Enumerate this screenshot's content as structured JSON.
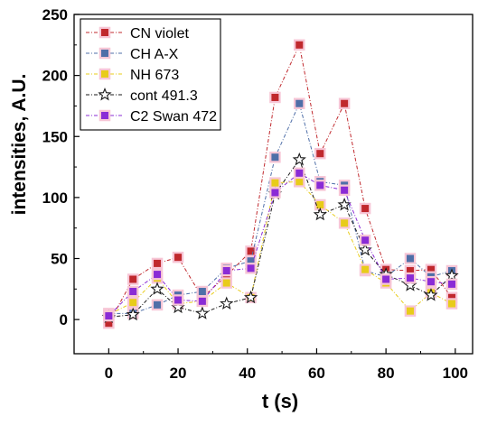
{
  "chart_data": {
    "type": "line",
    "xlabel": "t (s)",
    "ylabel": "intensities, A.U.",
    "xlim": [
      -10,
      105
    ],
    "ylim": [
      -28,
      250
    ],
    "xticks": [
      0,
      20,
      40,
      60,
      80,
      100
    ],
    "yticks": [
      0,
      50,
      100,
      150,
      200,
      250
    ],
    "grid": false,
    "legend_position": "top-left",
    "series": [
      {
        "name": "CN violet",
        "color": "#c0282d",
        "marker": "square",
        "x": [
          0,
          7,
          14,
          20,
          27,
          34,
          41,
          48,
          55,
          61,
          68,
          74,
          80,
          87,
          93,
          99
        ],
        "y": [
          -3,
          33,
          46,
          51,
          18,
          36,
          56,
          182,
          225,
          136,
          177,
          91,
          41,
          40,
          41,
          18
        ]
      },
      {
        "name": "CH A-X",
        "color": "#4f6fa8",
        "marker": "square",
        "x": [
          0,
          7,
          14,
          20,
          27,
          34,
          41,
          48,
          55,
          61,
          68,
          74,
          80,
          87,
          93,
          99
        ],
        "y": [
          5,
          5,
          12,
          20,
          23,
          42,
          48,
          133,
          177,
          113,
          110,
          40,
          35,
          50,
          35,
          40
        ]
      },
      {
        "name": "NH 673",
        "color": "#e8cc1a",
        "marker": "square",
        "x": [
          0,
          7,
          14,
          20,
          27,
          34,
          41,
          48,
          55,
          61,
          68,
          74,
          80,
          87,
          93,
          99
        ],
        "y": [
          4,
          14,
          34,
          13,
          15,
          30,
          18,
          112,
          113,
          94,
          79,
          41,
          30,
          7,
          22,
          13
        ]
      },
      {
        "name": "cont 491.3",
        "color": "#1a1a1a",
        "marker": "star",
        "x": [
          0,
          7,
          14,
          20,
          27,
          34,
          41,
          48,
          55,
          61,
          68,
          74,
          80,
          87,
          93,
          99
        ],
        "y": [
          2,
          4,
          25,
          10,
          5,
          13,
          18,
          103,
          131,
          86,
          94,
          57,
          37,
          28,
          20,
          36
        ]
      },
      {
        "name": "C2 Swan 472",
        "color": "#8a2bd6",
        "marker": "square",
        "x": [
          0,
          7,
          14,
          20,
          27,
          34,
          41,
          48,
          55,
          61,
          68,
          74,
          80,
          87,
          93,
          99
        ],
        "y": [
          3,
          23,
          37,
          16,
          15,
          40,
          42,
          104,
          120,
          110,
          106,
          65,
          33,
          34,
          31,
          29
        ]
      }
    ]
  }
}
